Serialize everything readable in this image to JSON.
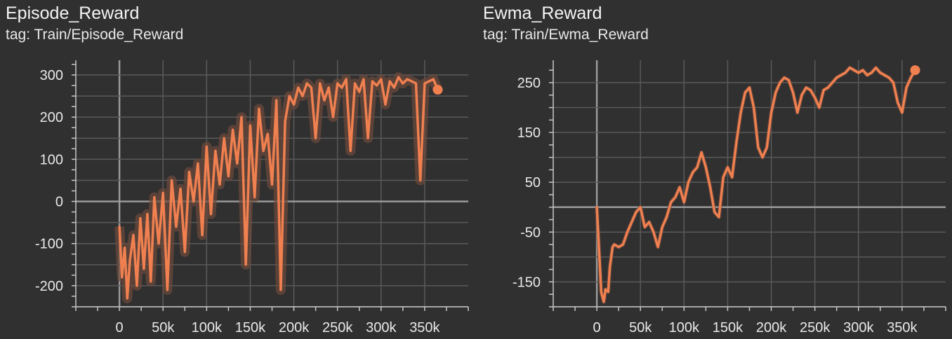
{
  "colors": {
    "background": "#303030",
    "grid": "#5a5a5a",
    "zero_line": "#9a9a9a",
    "axis": "#c8c8c8",
    "series": "#f08050",
    "series_raw": "#6e4a3c"
  },
  "chart_data": [
    {
      "type": "line",
      "title": "Episode_Reward",
      "tag": "tag: Train/Episode_Reward",
      "xlabel": "",
      "ylabel": "",
      "xlim": [
        -50000,
        400000
      ],
      "ylim": [
        -250,
        335
      ],
      "xticks": [
        0,
        50000,
        100000,
        150000,
        200000,
        250000,
        300000,
        350000
      ],
      "xtick_labels": [
        "0",
        "50k",
        "100k",
        "150k",
        "200k",
        "250k",
        "300k",
        "350k"
      ],
      "yticks": [
        -200,
        -100,
        0,
        100,
        200,
        300
      ],
      "ytick_labels": [
        "-200",
        "-100",
        "0",
        "100",
        "200",
        "300"
      ],
      "grid": true,
      "series": [
        {
          "name": "Train/Episode_Reward (smoothed)",
          "x": [
            0,
            3000,
            6000,
            9000,
            12000,
            16000,
            20000,
            24000,
            28000,
            32000,
            36000,
            40000,
            45000,
            50000,
            55000,
            60000,
            65000,
            70000,
            75000,
            80000,
            85000,
            90000,
            95000,
            100000,
            105000,
            110000,
            115000,
            120000,
            125000,
            130000,
            135000,
            140000,
            145000,
            150000,
            155000,
            160000,
            165000,
            170000,
            175000,
            180000,
            185000,
            190000,
            195000,
            200000,
            205000,
            210000,
            215000,
            220000,
            225000,
            230000,
            235000,
            240000,
            245000,
            250000,
            255000,
            260000,
            265000,
            270000,
            275000,
            280000,
            285000,
            290000,
            295000,
            300000,
            305000,
            310000,
            315000,
            320000,
            325000,
            330000,
            335000,
            340000,
            345000,
            350000,
            355000,
            360000,
            365000
          ],
          "values": [
            -60,
            -180,
            -110,
            -230,
            -140,
            -80,
            -200,
            -40,
            -160,
            -30,
            -190,
            10,
            -100,
            20,
            -210,
            50,
            -60,
            30,
            -120,
            70,
            0,
            90,
            -80,
            130,
            -30,
            120,
            40,
            150,
            60,
            170,
            90,
            200,
            -150,
            180,
            10,
            220,
            120,
            160,
            40,
            240,
            -210,
            190,
            250,
            230,
            270,
            250,
            280,
            270,
            150,
            280,
            240,
            270,
            200,
            280,
            270,
            290,
            120,
            280,
            260,
            290,
            150,
            285,
            275,
            290,
            230,
            285,
            270,
            295,
            280,
            290,
            285,
            280,
            50,
            280,
            285,
            290,
            265
          ]
        }
      ],
      "last_value": 265
    },
    {
      "type": "line",
      "title": "Ewma_Reward",
      "tag": "tag: Train/Ewma_Reward",
      "xlabel": "",
      "ylabel": "",
      "xlim": [
        -50000,
        400000
      ],
      "ylim": [
        -200,
        295
      ],
      "xticks": [
        0,
        50000,
        100000,
        150000,
        200000,
        250000,
        300000,
        350000
      ],
      "xtick_labels": [
        "0",
        "50k",
        "100k",
        "150k",
        "200k",
        "250k",
        "300k",
        "350k"
      ],
      "yticks": [
        -150,
        -50,
        50,
        150,
        250
      ],
      "ytick_labels": [
        "-150",
        "-50",
        "50",
        "150",
        "250"
      ],
      "grid": true,
      "series": [
        {
          "name": "Train/Ewma_Reward",
          "x": [
            0,
            3000,
            5000,
            8000,
            10000,
            13000,
            15000,
            18000,
            20000,
            25000,
            30000,
            35000,
            40000,
            45000,
            50000,
            55000,
            60000,
            65000,
            70000,
            75000,
            80000,
            85000,
            90000,
            95000,
            100000,
            105000,
            110000,
            115000,
            120000,
            125000,
            130000,
            135000,
            140000,
            145000,
            150000,
            155000,
            160000,
            165000,
            170000,
            175000,
            180000,
            185000,
            190000,
            195000,
            200000,
            205000,
            210000,
            215000,
            220000,
            225000,
            230000,
            235000,
            240000,
            245000,
            250000,
            255000,
            260000,
            265000,
            270000,
            275000,
            280000,
            285000,
            290000,
            295000,
            300000,
            305000,
            310000,
            315000,
            320000,
            325000,
            330000,
            335000,
            340000,
            345000,
            350000,
            355000,
            360000,
            365000
          ],
          "values": [
            0,
            -100,
            -170,
            -190,
            -165,
            -170,
            -120,
            -80,
            -75,
            -80,
            -75,
            -50,
            -30,
            -10,
            0,
            -40,
            -30,
            -50,
            -80,
            -40,
            -20,
            10,
            20,
            40,
            10,
            50,
            70,
            80,
            110,
            80,
            40,
            -10,
            -20,
            60,
            80,
            60,
            130,
            190,
            230,
            240,
            200,
            120,
            100,
            120,
            190,
            230,
            250,
            260,
            255,
            230,
            190,
            225,
            240,
            235,
            220,
            200,
            235,
            240,
            250,
            260,
            265,
            270,
            280,
            275,
            270,
            275,
            265,
            270,
            280,
            270,
            265,
            260,
            250,
            210,
            190,
            240,
            260,
            275
          ]
        }
      ],
      "last_value": 275
    }
  ]
}
